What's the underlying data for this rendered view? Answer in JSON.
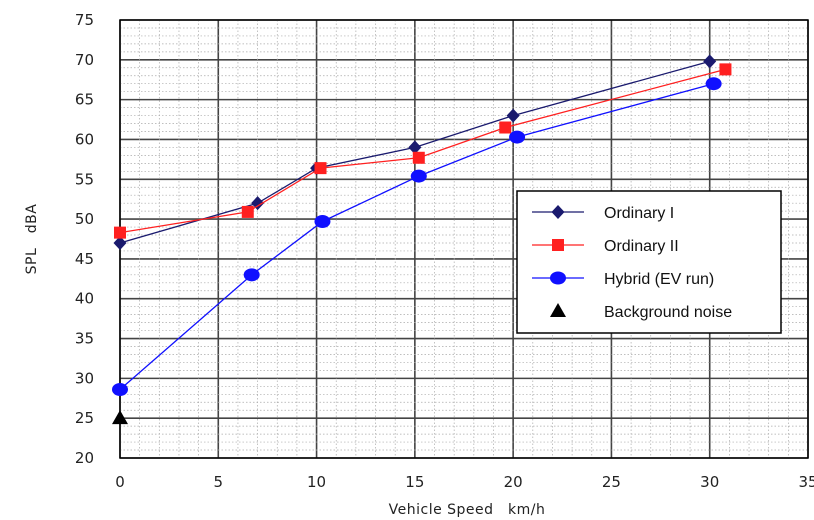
{
  "chart_data": {
    "type": "line",
    "xlabel": "Vehicle Speed　km/h",
    "ylabel": "SPL　dBA",
    "xlim": [
      0,
      35
    ],
    "ylim": [
      20,
      75
    ],
    "xticks": [
      0,
      5,
      10,
      15,
      20,
      25,
      30,
      35
    ],
    "yticks": [
      20,
      25,
      30,
      35,
      40,
      45,
      50,
      55,
      60,
      65,
      70,
      75
    ],
    "grid": true,
    "legend_position": "right",
    "series": [
      {
        "name": "Ordinary I",
        "color": "#1a1a6e",
        "marker": "diamond",
        "points": [
          [
            0,
            47
          ],
          [
            7,
            52
          ],
          [
            10,
            56.4
          ],
          [
            15,
            59
          ],
          [
            20,
            63
          ],
          [
            30,
            69.8
          ]
        ]
      },
      {
        "name": "Ordinary II",
        "color": "#ff2020",
        "marker": "square",
        "points": [
          [
            0,
            48.3
          ],
          [
            6.5,
            50.9
          ],
          [
            10.2,
            56.4
          ],
          [
            15.2,
            57.7
          ],
          [
            19.6,
            61.5
          ],
          [
            30.8,
            68.8
          ]
        ]
      },
      {
        "name": "Hybrid (EV run)",
        "color": "#1010ff",
        "marker": "circle",
        "points": [
          [
            0,
            28.6
          ],
          [
            6.7,
            43
          ],
          [
            10.3,
            49.7
          ],
          [
            15.2,
            55.4
          ],
          [
            20.2,
            60.3
          ],
          [
            30.2,
            67
          ]
        ]
      },
      {
        "name": "Background noise",
        "color": "#000000",
        "marker": "triangle",
        "points": [
          [
            0,
            25
          ]
        ]
      }
    ]
  }
}
